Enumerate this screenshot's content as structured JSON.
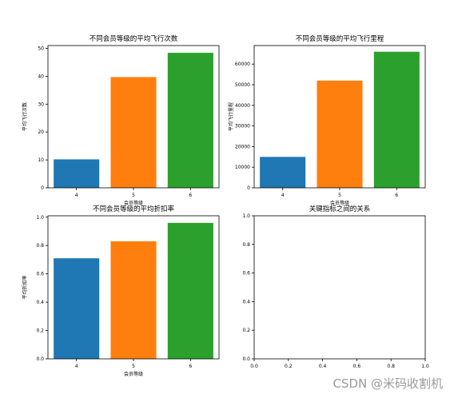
{
  "chart_data": [
    {
      "type": "bar",
      "title": "不同会员等级的平均飞行次数",
      "xlabel": "会员等级",
      "ylabel": "平均飞行次数",
      "categories": [
        "4",
        "5",
        "6"
      ],
      "values": [
        10.2,
        39.7,
        48.4
      ],
      "bar_colors": [
        "#1f77b4",
        "#ff7f0e",
        "#2ca02c"
      ],
      "ylim": [
        0,
        51
      ],
      "yticks": [
        0,
        10,
        20,
        30,
        40,
        50
      ]
    },
    {
      "type": "bar",
      "title": "不同会员等级的平均飞行里程",
      "xlabel": "会员等级",
      "ylabel": "平均飞行里程",
      "categories": [
        "4",
        "5",
        "6"
      ],
      "values": [
        15000,
        52000,
        66000
      ],
      "bar_colors": [
        "#1f77b4",
        "#ff7f0e",
        "#2ca02c"
      ],
      "ylim": [
        0,
        69000
      ],
      "yticks": [
        0,
        10000,
        20000,
        30000,
        40000,
        50000,
        60000
      ]
    },
    {
      "type": "bar",
      "title": "不同会员等级的平均折扣率",
      "xlabel": "会员等级",
      "ylabel": "平均折扣率",
      "categories": [
        "4",
        "5",
        "6"
      ],
      "values": [
        0.71,
        0.83,
        0.96
      ],
      "bar_colors": [
        "#1f77b4",
        "#ff7f0e",
        "#2ca02c"
      ],
      "ylim": [
        0,
        1.01
      ],
      "yticks": [
        0.0,
        0.2,
        0.4,
        0.6,
        0.8,
        1.0
      ],
      "ytick_decimals": 1
    },
    {
      "type": "scatter",
      "title": "关键指标之间的关系",
      "xlabel": "",
      "ylabel": "",
      "series": [],
      "xlim": [
        0,
        1
      ],
      "ylim": [
        0,
        1
      ],
      "xticks": [
        0.0,
        0.2,
        0.4,
        0.6,
        0.8,
        1.0
      ],
      "yticks": [
        0.0,
        0.2,
        0.4,
        0.6,
        0.8,
        1.0
      ],
      "tick_decimals": 1
    }
  ],
  "watermark": "CSDN @米码收割机"
}
